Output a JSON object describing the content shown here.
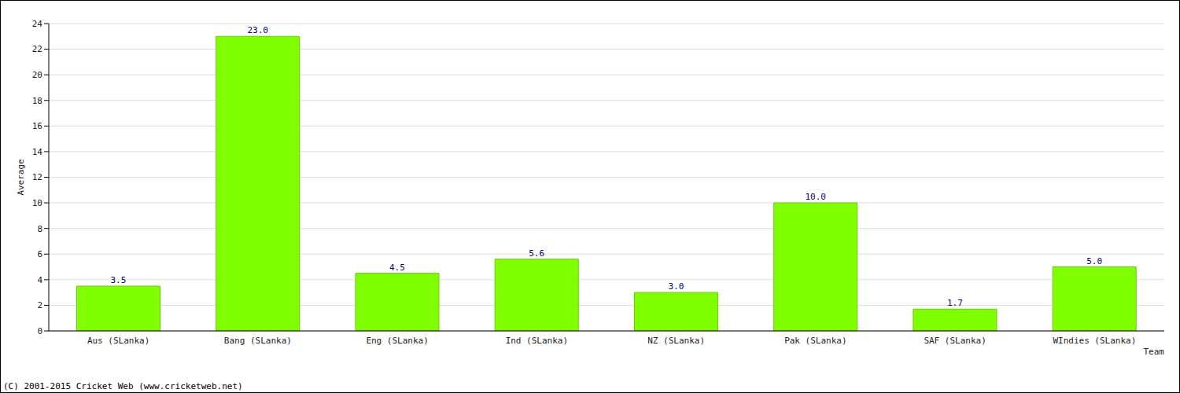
{
  "chart_data": {
    "type": "bar",
    "x_label": "Team",
    "y_label": "Average",
    "categories": [
      "Aus (SLanka)",
      "Bang (SLanka)",
      "Eng (SLanka)",
      "Ind (SLanka)",
      "NZ (SLanka)",
      "Pak (SLanka)",
      "SAF (SLanka)",
      "WIndies (SLanka)"
    ],
    "values": [
      3.5,
      23.0,
      4.5,
      5.6,
      3.0,
      10.0,
      1.7,
      5.0
    ],
    "value_labels": [
      "3.5",
      "23.0",
      "4.5",
      "5.6",
      "3.0",
      "10.0",
      "1.7",
      "5.0"
    ],
    "color": "#7fff00",
    "ylim": [
      0,
      24
    ],
    "yticks": [
      0,
      2,
      4,
      6,
      8,
      10,
      12,
      14,
      16,
      18,
      20,
      22,
      24
    ],
    "grid": true,
    "data_labels": true,
    "annotations": [
      "(C) 2001-2015 Cricket Web (www.cricketweb.net)"
    ]
  }
}
